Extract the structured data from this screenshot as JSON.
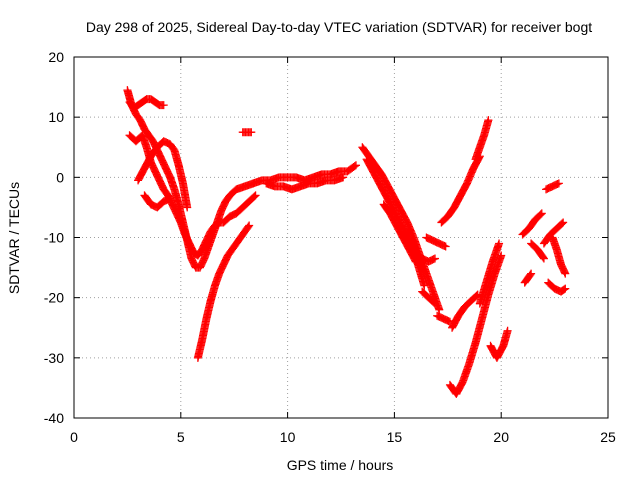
{
  "chart_data": {
    "type": "scatter",
    "title": "Day 298 of 2025, Sidereal Day-to-day VTEC variation (SDTVAR) for receiver bogt",
    "xlabel": "GPS time / hours",
    "ylabel": "SDTVAR / TECUs",
    "xlim": [
      0,
      25
    ],
    "ylim": [
      -40,
      20
    ],
    "x_ticks": [
      0,
      5,
      10,
      15,
      20,
      25
    ],
    "y_ticks": [
      -40,
      -30,
      -20,
      -10,
      0,
      10,
      20
    ],
    "grid": true,
    "marker": "+",
    "color": "#ff0000",
    "series": [
      {
        "values": [
          [
            2.5,
            14.5
          ],
          [
            2.7,
            12.0
          ],
          [
            2.9,
            10.5
          ],
          [
            3.1,
            9.5
          ],
          [
            3.3,
            8.0
          ],
          [
            3.5,
            7.0
          ],
          [
            3.7,
            6.0
          ],
          [
            3.9,
            4.5
          ],
          [
            4.1,
            3.0
          ],
          [
            4.3,
            1.5
          ],
          [
            4.5,
            0.0
          ],
          [
            4.7,
            -2.0
          ],
          [
            4.9,
            -4.5
          ],
          [
            5.1,
            -7.5
          ],
          [
            5.3,
            -10.5
          ],
          [
            5.5,
            -13.5
          ],
          [
            5.7,
            -15.0
          ],
          [
            5.9,
            -15.0
          ],
          [
            6.1,
            -13.5
          ],
          [
            6.3,
            -11.5
          ],
          [
            6.5,
            -9.5
          ],
          [
            6.7,
            -7.5
          ],
          [
            6.9,
            -5.5
          ],
          [
            7.1,
            -4.0
          ],
          [
            7.3,
            -3.0
          ],
          [
            7.6,
            -2.0
          ],
          [
            8.0,
            -1.5
          ],
          [
            8.4,
            -1.0
          ]
        ]
      },
      {
        "values": [
          [
            2.6,
            12.5
          ],
          [
            2.8,
            11.5
          ],
          [
            3.0,
            12.0
          ],
          [
            3.2,
            12.5
          ],
          [
            3.4,
            13.0
          ],
          [
            3.6,
            13.0
          ],
          [
            3.8,
            12.5
          ],
          [
            4.0,
            12.0
          ],
          [
            4.2,
            12.0
          ]
        ]
      },
      {
        "values": [
          [
            2.6,
            7.0
          ],
          [
            2.9,
            6.0
          ],
          [
            3.2,
            7.0
          ],
          [
            3.4,
            5.0
          ],
          [
            3.6,
            2.5
          ],
          [
            3.8,
            1.0
          ],
          [
            4.0,
            -0.5
          ],
          [
            4.2,
            -2.0
          ],
          [
            4.4,
            -3.0
          ],
          [
            4.6,
            -4.5
          ],
          [
            4.8,
            -6.0
          ],
          [
            5.0,
            -7.5
          ],
          [
            5.2,
            -9.5
          ],
          [
            5.4,
            -11.0
          ],
          [
            5.6,
            -12.5
          ],
          [
            5.8,
            -13.0
          ],
          [
            6.0,
            -12.0
          ],
          [
            6.2,
            -10.5
          ],
          [
            6.4,
            -9.0
          ],
          [
            6.6,
            -8.0
          ],
          [
            6.8,
            -7.5
          ],
          [
            7.0,
            -7.5
          ],
          [
            7.3,
            -6.5
          ],
          [
            7.6,
            -6.0
          ],
          [
            7.9,
            -5.0
          ],
          [
            8.2,
            -4.0
          ],
          [
            8.5,
            -3.0
          ]
        ]
      },
      {
        "values": [
          [
            3.0,
            -0.5
          ],
          [
            3.3,
            1.5
          ],
          [
            3.6,
            3.5
          ],
          [
            3.9,
            5.0
          ],
          [
            4.2,
            6.0
          ],
          [
            4.5,
            5.5
          ],
          [
            4.7,
            4.5
          ],
          [
            4.9,
            2.0
          ],
          [
            5.1,
            -1.0
          ],
          [
            5.3,
            -5.0
          ]
        ]
      },
      {
        "values": [
          [
            3.3,
            -3.0
          ],
          [
            3.6,
            -4.5
          ],
          [
            3.9,
            -5.0
          ],
          [
            4.2,
            -4.0
          ],
          [
            4.5,
            -3.5
          ]
        ]
      },
      {
        "values": [
          [
            5.8,
            -30.0
          ],
          [
            6.0,
            -27.0
          ],
          [
            6.2,
            -23.5
          ],
          [
            6.4,
            -20.5
          ],
          [
            6.6,
            -18.0
          ],
          [
            6.8,
            -16.0
          ],
          [
            7.0,
            -14.5
          ],
          [
            7.2,
            -13.0
          ],
          [
            7.4,
            -12.0
          ],
          [
            7.6,
            -11.0
          ],
          [
            7.8,
            -10.0
          ],
          [
            8.0,
            -9.0
          ],
          [
            8.2,
            -8.0
          ]
        ]
      },
      {
        "values": [
          [
            7.9,
            7.5
          ],
          [
            8.1,
            7.5
          ],
          [
            8.3,
            7.5
          ]
        ]
      },
      {
        "values": [
          [
            8.4,
            -1.0
          ],
          [
            8.8,
            -0.5
          ],
          [
            9.2,
            -0.5
          ],
          [
            9.6,
            0.0
          ],
          [
            10.0,
            0.0
          ],
          [
            10.4,
            0.0
          ],
          [
            10.8,
            -0.5
          ],
          [
            11.2,
            0.0
          ],
          [
            11.6,
            0.5
          ],
          [
            12.0,
            0.5
          ],
          [
            12.4,
            1.0
          ],
          [
            12.8,
            1.0
          ],
          [
            13.2,
            2.0
          ]
        ]
      },
      {
        "values": [
          [
            9.0,
            -1.0
          ],
          [
            9.4,
            -1.5
          ],
          [
            9.8,
            -1.5
          ],
          [
            10.2,
            -2.0
          ],
          [
            10.6,
            -1.5
          ],
          [
            11.0,
            -1.0
          ],
          [
            11.4,
            -1.0
          ],
          [
            11.8,
            -0.5
          ],
          [
            12.2,
            -0.5
          ],
          [
            12.6,
            0.0
          ]
        ]
      },
      {
        "values": [
          [
            13.5,
            5.0
          ],
          [
            13.8,
            3.5
          ],
          [
            14.1,
            2.0
          ],
          [
            14.4,
            0.5
          ],
          [
            14.7,
            -1.5
          ],
          [
            15.0,
            -3.5
          ],
          [
            15.3,
            -5.5
          ],
          [
            15.6,
            -7.5
          ],
          [
            15.9,
            -10.0
          ],
          [
            16.2,
            -13.0
          ],
          [
            16.5,
            -16.0
          ],
          [
            16.8,
            -19.0
          ],
          [
            17.1,
            -22.0
          ]
        ]
      },
      {
        "values": [
          [
            13.7,
            3.0
          ],
          [
            14.0,
            1.0
          ],
          [
            14.3,
            -1.0
          ],
          [
            14.6,
            -3.0
          ],
          [
            14.9,
            -5.0
          ],
          [
            15.2,
            -7.0
          ],
          [
            15.5,
            -9.0
          ],
          [
            15.8,
            -11.5
          ],
          [
            16.1,
            -14.5
          ],
          [
            16.4,
            -18.0
          ]
        ]
      },
      {
        "values": [
          [
            14.5,
            -4.5
          ],
          [
            14.8,
            -6.0
          ],
          [
            15.1,
            -8.0
          ],
          [
            15.4,
            -10.0
          ],
          [
            15.7,
            -12.0
          ],
          [
            16.0,
            -14.0
          ]
        ]
      },
      {
        "values": [
          [
            16.0,
            -14.0
          ],
          [
            16.3,
            -13.5
          ],
          [
            16.6,
            -14.0
          ],
          [
            16.9,
            -13.5
          ]
        ]
      },
      {
        "values": [
          [
            16.5,
            -10.0
          ],
          [
            16.8,
            -10.5
          ],
          [
            17.1,
            -11.0
          ],
          [
            17.4,
            -11.5
          ]
        ]
      },
      {
        "values": [
          [
            16.3,
            -19.0
          ],
          [
            16.6,
            -20.0
          ],
          [
            16.9,
            -21.0
          ]
        ]
      },
      {
        "values": [
          [
            17.2,
            -7.5
          ],
          [
            17.5,
            -6.5
          ],
          [
            17.8,
            -5.0
          ],
          [
            18.1,
            -3.0
          ],
          [
            18.4,
            -1.0
          ],
          [
            18.7,
            1.5
          ],
          [
            19.0,
            3.5
          ]
        ]
      },
      {
        "values": [
          [
            18.8,
            3.0
          ],
          [
            19.0,
            5.0
          ],
          [
            19.2,
            7.0
          ],
          [
            19.4,
            9.5
          ]
        ]
      },
      {
        "values": [
          [
            17.7,
            -25.0
          ],
          [
            18.0,
            -23.0
          ],
          [
            18.3,
            -21.5
          ],
          [
            18.6,
            -20.5
          ],
          [
            18.9,
            -19.5
          ]
        ]
      },
      {
        "values": [
          [
            17.0,
            -23.0
          ],
          [
            17.3,
            -23.5
          ],
          [
            17.6,
            -24.0
          ]
        ]
      },
      {
        "values": [
          [
            17.6,
            -34.5
          ],
          [
            17.9,
            -36.0
          ],
          [
            18.2,
            -34.0
          ],
          [
            18.5,
            -31.0
          ],
          [
            18.8,
            -27.5
          ],
          [
            19.1,
            -23.5
          ],
          [
            19.4,
            -19.5
          ],
          [
            19.7,
            -16.0
          ],
          [
            20.0,
            -13.0
          ]
        ]
      },
      {
        "values": [
          [
            19.0,
            -21.0
          ],
          [
            19.3,
            -17.5
          ],
          [
            19.6,
            -14.0
          ],
          [
            19.9,
            -11.0
          ]
        ]
      },
      {
        "values": [
          [
            19.5,
            -28.0
          ],
          [
            19.8,
            -30.0
          ],
          [
            20.1,
            -28.0
          ],
          [
            20.3,
            -25.5
          ]
        ]
      },
      {
        "values": [
          [
            21.1,
            -17.5
          ],
          [
            21.4,
            -16.0
          ]
        ]
      },
      {
        "values": [
          [
            21.0,
            -9.5
          ],
          [
            21.3,
            -8.5
          ],
          [
            21.6,
            -7.0
          ],
          [
            21.9,
            -6.0
          ]
        ]
      },
      {
        "values": [
          [
            21.4,
            -11.0
          ],
          [
            21.7,
            -12.0
          ],
          [
            22.0,
            -13.5
          ]
        ]
      },
      {
        "values": [
          [
            22.0,
            -11.0
          ],
          [
            22.3,
            -9.5
          ],
          [
            22.6,
            -8.5
          ],
          [
            22.9,
            -7.5
          ]
        ]
      },
      {
        "values": [
          [
            22.2,
            -17.5
          ],
          [
            22.5,
            -18.5
          ],
          [
            22.8,
            -19.0
          ],
          [
            23.0,
            -18.5
          ]
        ]
      },
      {
        "values": [
          [
            22.4,
            -10.0
          ],
          [
            22.6,
            -12.0
          ],
          [
            22.8,
            -14.5
          ],
          [
            23.0,
            -16.0
          ]
        ]
      },
      {
        "values": [
          [
            22.1,
            -2.0
          ],
          [
            22.4,
            -1.5
          ],
          [
            22.7,
            -1.0
          ]
        ]
      }
    ]
  }
}
